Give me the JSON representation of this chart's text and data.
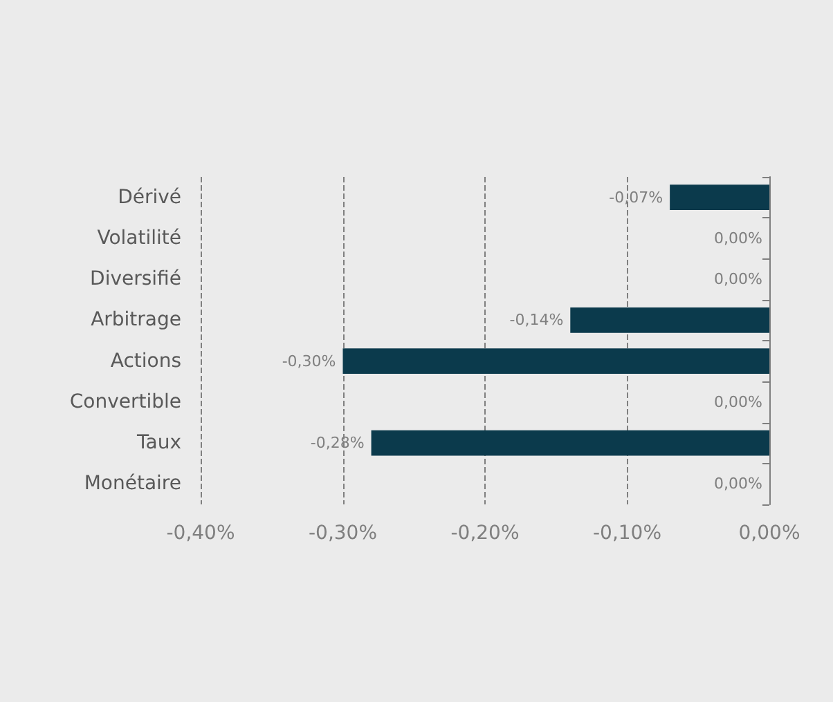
{
  "chart_data": {
    "type": "bar",
    "orientation": "horizontal",
    "categories": [
      "Dérivé",
      "Volatilité",
      "Diversifié",
      "Arbitrage",
      "Actions",
      "Convertible",
      "Taux",
      "Monétaire"
    ],
    "values": [
      -0.07,
      0,
      0,
      -0.14,
      -0.3,
      0,
      -0.28,
      0
    ],
    "value_labels": [
      "-0,07%",
      "0,00%",
      "0,00%",
      "-0,14%",
      "-0,30%",
      "0,00%",
      "-0,28%",
      "0,00%"
    ],
    "color": "#0b3a4c",
    "xlim": [
      -0.4,
      0
    ],
    "xticks": [
      {
        "value": -0.4,
        "label": "-0,40%"
      },
      {
        "value": -0.3,
        "label": "-0,30%"
      },
      {
        "value": -0.2,
        "label": "-0,20%"
      },
      {
        "value": -0.1,
        "label": "-0,10%"
      },
      {
        "value": 0,
        "label": "0,00%"
      }
    ],
    "grid": "x",
    "line_style": "dashed"
  }
}
